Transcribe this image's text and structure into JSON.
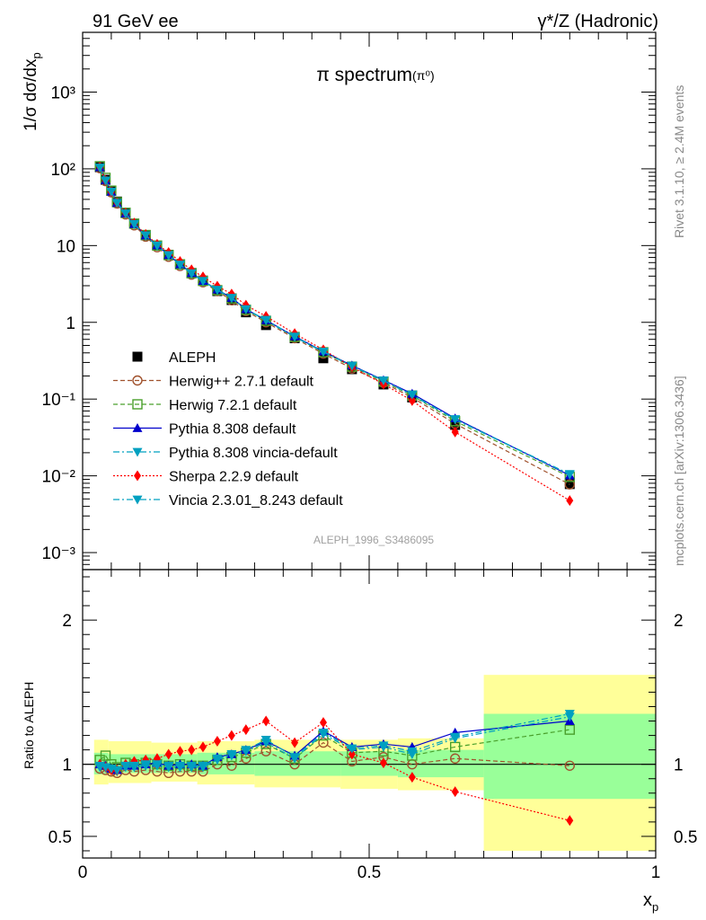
{
  "header": {
    "left": "91 GeV ee",
    "right": "γ*/Z (Hadronic)"
  },
  "side_text": {
    "rivet": "Rivet 3.1.10, ≥ 2.4M events",
    "mcplots": "mcplots.cern.ch [arXiv:1306.3436]"
  },
  "colors": {
    "data": "#000000",
    "herwigpp": "#a0522d",
    "herwig7": "#4aa02c",
    "pythia": "#0000cc",
    "pythia_vincia": "#00a0c0",
    "sherpa": "#ff0000",
    "vincia": "#00a0c0",
    "band_inner": "#99ff99",
    "band_outer": "#ffff99"
  },
  "chart_data": [
    {
      "type": "scatter",
      "title": "π spectrum",
      "title_sup": "(π⁰)",
      "ylabel": "1/σ dσ/dx",
      "ylabel_sub": "p",
      "watermark": "ALEPH_1996_S3486095",
      "yscale": "log",
      "ylim": [
        0.0006,
        6000
      ],
      "xlim": [
        0,
        1
      ],
      "y_ticks": [
        "10⁻³",
        "10⁻²",
        "10⁻¹",
        "1",
        "10",
        "10²",
        "10³"
      ],
      "x": [
        0.03,
        0.04,
        0.05,
        0.06,
        0.075,
        0.09,
        0.11,
        0.13,
        0.15,
        0.17,
        0.19,
        0.21,
        0.235,
        0.26,
        0.285,
        0.32,
        0.37,
        0.42,
        0.47,
        0.525,
        0.575,
        0.65,
        0.85
      ],
      "series": [
        {
          "name": "ALEPH",
          "key": "data",
          "marker": "square",
          "line": "none",
          "values": [
            105,
            72,
            52,
            37.5,
            26.5,
            19.3,
            13.6,
            10.0,
            7.6,
            5.7,
            4.4,
            3.5,
            2.55,
            1.95,
            1.35,
            0.92,
            0.62,
            0.34,
            0.245,
            0.155,
            0.105,
            0.046,
            0.0078
          ]
        },
        {
          "name": "Herwig++ 2.7.1 default",
          "key": "herwigpp",
          "marker": "circle-open",
          "line": "dashed",
          "ratio": [
            0.97,
            0.96,
            0.95,
            0.94,
            0.96,
            0.95,
            0.96,
            0.95,
            0.94,
            0.95,
            0.95,
            0.95,
            1.0,
            0.99,
            1.04,
            1.09,
            1.0,
            1.15,
            1.02,
            1.05,
            1.0,
            1.04,
            0.99
          ]
        },
        {
          "name": "Herwig 7.2.1 default",
          "key": "herwig7",
          "marker": "square-open",
          "line": "dashed",
          "ratio": [
            1.03,
            1.06,
            1.0,
            0.98,
            1.01,
            1.0,
            1.01,
            1.0,
            0.99,
            1.0,
            0.99,
            0.99,
            1.03,
            1.05,
            1.08,
            1.14,
            1.04,
            1.2,
            1.08,
            1.09,
            1.06,
            1.12,
            1.24
          ]
        },
        {
          "name": "Pythia 8.308 default",
          "key": "pythia",
          "marker": "triangle-up",
          "line": "solid",
          "ratio": [
            1.0,
            0.99,
            0.97,
            0.96,
            0.99,
            0.99,
            1.0,
            1.01,
            0.99,
            1.0,
            1.0,
            0.99,
            1.05,
            1.07,
            1.1,
            1.16,
            1.06,
            1.23,
            1.12,
            1.14,
            1.12,
            1.22,
            1.3
          ]
        },
        {
          "name": "Pythia 8.308 vincia-default",
          "key": "pythia_vincia",
          "marker": "triangle-down",
          "line": "dashdot",
          "ratio": [
            0.98,
            0.98,
            0.96,
            0.95,
            0.98,
            0.98,
            0.99,
            0.99,
            0.98,
            0.98,
            0.98,
            0.98,
            1.03,
            1.06,
            1.09,
            1.15,
            1.04,
            1.21,
            1.1,
            1.12,
            1.07,
            1.18,
            1.33
          ]
        },
        {
          "name": "Sherpa 2.2.9 default",
          "key": "sherpa",
          "marker": "diamond",
          "line": "dotted",
          "ratio": [
            1.0,
            0.98,
            0.96,
            0.96,
            1.0,
            1.02,
            1.03,
            1.04,
            1.07,
            1.09,
            1.1,
            1.12,
            1.16,
            1.2,
            1.24,
            1.3,
            1.15,
            1.29,
            1.07,
            1.01,
            0.91,
            0.81,
            0.61
          ]
        },
        {
          "name": "Vincia 2.3.01_8.243 default",
          "key": "vincia",
          "marker": "triangle-down",
          "line": "dashdot",
          "ratio": [
            0.99,
            0.98,
            0.97,
            0.96,
            0.99,
            0.99,
            1.0,
            1.0,
            0.99,
            0.99,
            0.99,
            0.99,
            1.04,
            1.07,
            1.1,
            1.17,
            1.05,
            1.22,
            1.11,
            1.13,
            1.09,
            1.19,
            1.35
          ]
        }
      ]
    },
    {
      "type": "band",
      "ylabel": "Ratio to ALEPH",
      "xlabel": "x",
      "xlabel_sub": "p",
      "ylim": [
        0.35,
        2.35
      ],
      "xlim": [
        0,
        1
      ],
      "y_ticks": [
        "0.5",
        "1",
        "2"
      ],
      "x_ticks": [
        "0",
        "0.5",
        "1"
      ],
      "bins": [
        {
          "x": [
            0.02,
            0.045
          ],
          "inner": [
            0.93,
            1.08
          ],
          "outer": [
            0.86,
            1.17
          ]
        },
        {
          "x": [
            0.045,
            0.12
          ],
          "inner": [
            0.94,
            1.07
          ],
          "outer": [
            0.87,
            1.16
          ]
        },
        {
          "x": [
            0.12,
            0.2
          ],
          "inner": [
            0.94,
            1.07
          ],
          "outer": [
            0.88,
            1.15
          ]
        },
        {
          "x": [
            0.2,
            0.3
          ],
          "inner": [
            0.93,
            1.08
          ],
          "outer": [
            0.86,
            1.16
          ]
        },
        {
          "x": [
            0.3,
            0.45
          ],
          "inner": [
            0.92,
            1.09
          ],
          "outer": [
            0.84,
            1.17
          ]
        },
        {
          "x": [
            0.45,
            0.55
          ],
          "inner": [
            0.92,
            1.09
          ],
          "outer": [
            0.83,
            1.17
          ]
        },
        {
          "x": [
            0.55,
            0.7
          ],
          "inner": [
            0.91,
            1.1
          ],
          "outer": [
            0.82,
            1.18
          ]
        },
        {
          "x": [
            0.7,
            1.0
          ],
          "inner": [
            0.76,
            1.35
          ],
          "outer": [
            0.4,
            1.62
          ]
        }
      ]
    }
  ]
}
